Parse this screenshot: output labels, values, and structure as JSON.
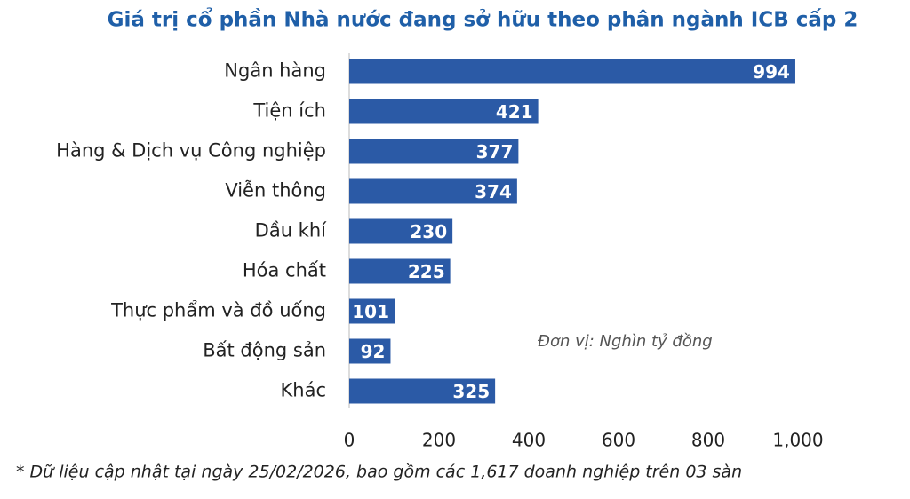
{
  "chart_data": {
    "type": "barh",
    "title": "Giá trị cổ phần Nhà nước đang sở hữu theo phân ngành ICB cấp 2",
    "categories": [
      "Ngân hàng",
      "Tiện ích",
      "Hàng & Dịch vụ Công nghiệp",
      "Viễn thông",
      "Dầu khí",
      "Hóa chất",
      "Thực phẩm và đồ uống",
      "Bất động sản",
      "Khác"
    ],
    "values": [
      994,
      421,
      377,
      374,
      230,
      225,
      101,
      92,
      325
    ],
    "color": "#2b5aa6",
    "xlim": [
      0,
      1000
    ],
    "xticks": [
      0,
      200,
      400,
      600,
      800,
      {
        "value": 1000,
        "label": "1,000"
      }
    ],
    "annotation": "Đơn vị: Nghìn tỷ đồng",
    "footnote": "* Dữ liệu cập nhật tại ngày 25/02/2026, bao gồm các 1,617 doanh nghiệp trên 03 sàn"
  }
}
